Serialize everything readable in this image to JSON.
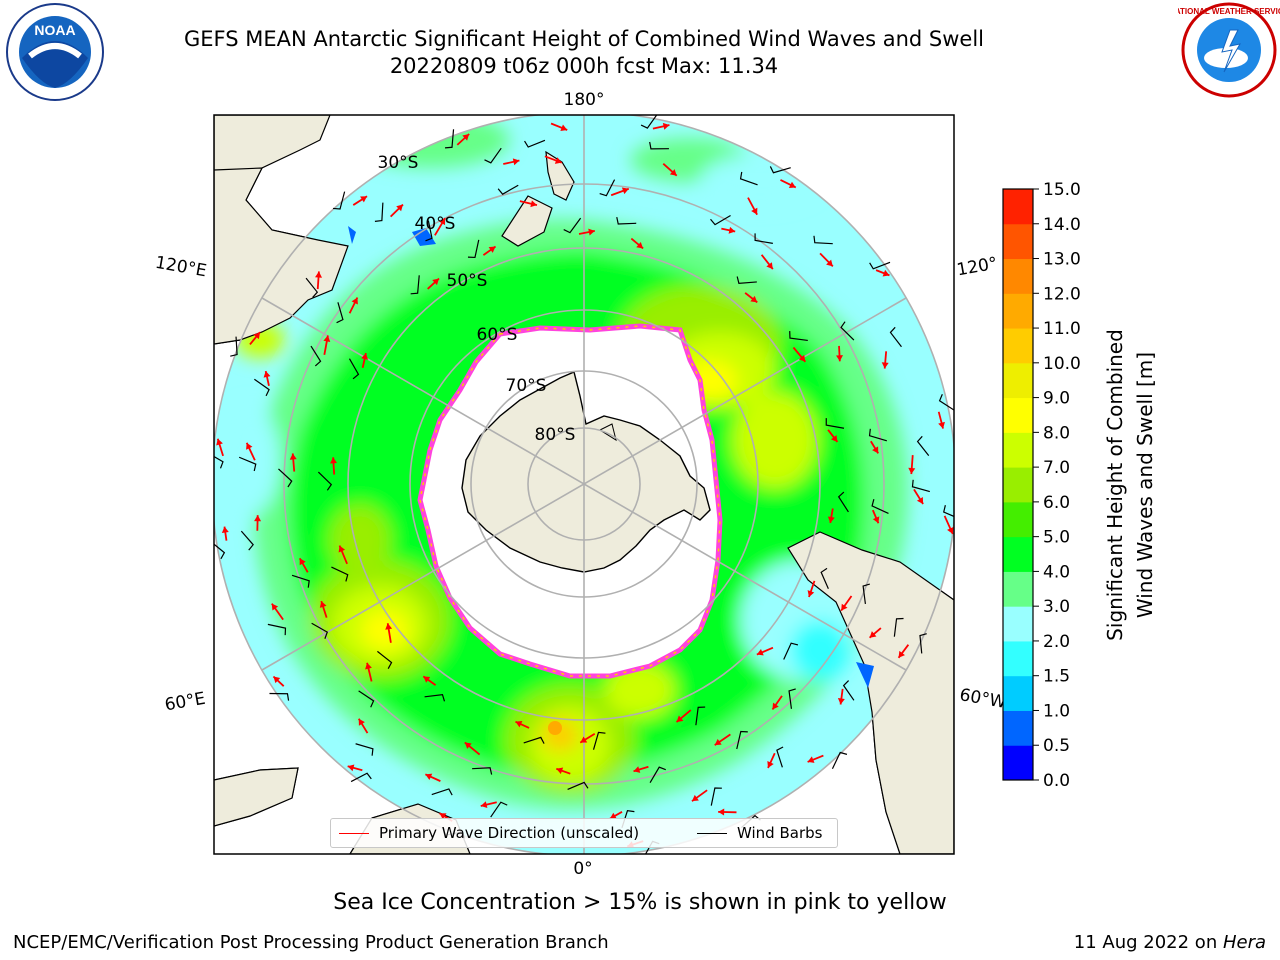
{
  "header": {
    "title_line1": "GEFS MEAN Antarctic Significant Height of Combined Wind Waves and Swell",
    "title_line2": "20220809 t06z 000h fcst   Max: 11.34"
  },
  "map": {
    "projection": "south-polar-stereographic",
    "longitude_labels": [
      "180°",
      "120°E",
      "120°",
      "60°E",
      "60°W",
      "0°"
    ],
    "latitude_labels": [
      "30°S",
      "40°S",
      "50°S",
      "60°S",
      "70°S",
      "80°S"
    ],
    "colors": {
      "land": "#eeecdc",
      "sea_ice": "#ffffff",
      "ice_edge": "#ff44dd",
      "graticule": "#b0b0b0",
      "wave_direction_arrow": "#ff0000",
      "wind_barb": "#000000"
    }
  },
  "colorbar": {
    "label_line1": "Significant Height of Combined",
    "label_line2": "Wind Waves and Swell [m]",
    "ticks": [
      "0.0",
      "0.5",
      "1.0",
      "1.5",
      "2.0",
      "3.0",
      "4.0",
      "5.0",
      "6.0",
      "7.0",
      "8.0",
      "9.0",
      "10.0",
      "11.0",
      "12.0",
      "13.0",
      "14.0",
      "15.0"
    ],
    "colors": [
      "#0000ff",
      "#0066ff",
      "#00ccff",
      "#33ffff",
      "#99ffff",
      "#66ff88",
      "#00ff22",
      "#44ee00",
      "#99ee00",
      "#ccff00",
      "#ffff00",
      "#eeee00",
      "#ffcc00",
      "#ffaa00",
      "#ff8800",
      "#ff5500",
      "#ff2200"
    ]
  },
  "legend": {
    "wave_label": "Primary Wave Direction (unscaled)",
    "barb_label": "Wind Barbs"
  },
  "footnote": "Sea Ice Concentration > 15% is shown in pink to yellow",
  "credits": {
    "left": "NCEP/EMC/Verification Post Processing Product Generation Branch",
    "right_prefix": "11 Aug 2022 on ",
    "right_italic": "Hera"
  },
  "logos": {
    "left": "NOAA",
    "right": "NATIONAL WEATHER SERVICE"
  }
}
